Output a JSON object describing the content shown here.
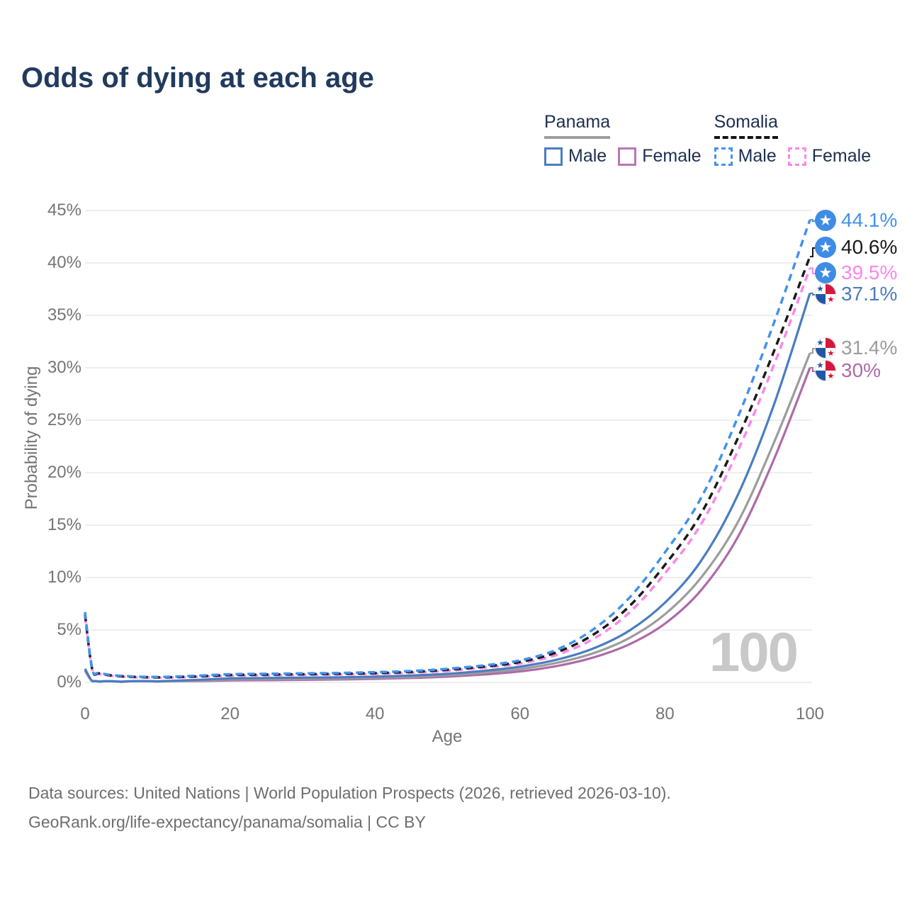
{
  "title": "Odds of dying at each age",
  "legend": {
    "panama": {
      "label": "Panama",
      "male": "Male",
      "female": "Female"
    },
    "somalia": {
      "label": "Somalia",
      "male": "Male",
      "female": "Female"
    }
  },
  "watermark": "100",
  "footer": {
    "line1": "Data sources: United Nations | World Population Prospects (2026, retrieved 2026-03-10).",
    "line2": "GeoRank.org/life-expectancy/panama/somalia | CC BY"
  },
  "flags": {
    "panama": {
      "red": "#d5173c",
      "blue": "#2257a8",
      "white": "#ffffff"
    },
    "somalia": {
      "blue": "#3f8ce4",
      "star": "#ffffff"
    }
  },
  "chart_data": {
    "type": "line",
    "title": "Odds of dying at each age",
    "xlabel": "Age",
    "ylabel": "Probability of dying",
    "xlim": [
      0,
      100
    ],
    "ylim": [
      0,
      45
    ],
    "x_ticks": [
      0,
      20,
      40,
      60,
      80,
      100
    ],
    "y_ticks": [
      "0%",
      "5%",
      "10%",
      "15%",
      "20%",
      "25%",
      "30%",
      "35%",
      "40%",
      "45%"
    ],
    "grid": true,
    "legend_position": "top-right",
    "ages": [
      0,
      1,
      2,
      5,
      10,
      15,
      20,
      25,
      30,
      35,
      40,
      45,
      50,
      55,
      60,
      65,
      70,
      75,
      80,
      85,
      90,
      95,
      100
    ],
    "series": [
      {
        "name": "Somalia Male",
        "country": "somalia",
        "sex": "male",
        "color": "#4292ec",
        "dash": true,
        "end_label": "44.1%",
        "values": [
          6.7,
          1.3,
          0.9,
          0.62,
          0.52,
          0.62,
          0.78,
          0.82,
          0.86,
          0.9,
          0.97,
          1.08,
          1.3,
          1.62,
          2.1,
          3.1,
          5.0,
          8.0,
          12.4,
          17.6,
          25.2,
          34.2,
          44.1
        ]
      },
      {
        "name": "Somalia Both sexes",
        "country": "somalia",
        "sex": "both",
        "color": "#1a1a1a",
        "dash": true,
        "end_label": "40.6%",
        "values": [
          6.5,
          1.25,
          0.85,
          0.58,
          0.48,
          0.56,
          0.7,
          0.74,
          0.78,
          0.82,
          0.88,
          1.0,
          1.2,
          1.5,
          1.95,
          2.85,
          4.5,
          7.2,
          11.2,
          16.1,
          23.2,
          31.5,
          40.6
        ]
      },
      {
        "name": "Somalia Female",
        "country": "somalia",
        "sex": "female",
        "color": "#fb86ea",
        "dash": true,
        "end_label": "39.5%",
        "values": [
          6.3,
          1.2,
          0.8,
          0.55,
          0.45,
          0.52,
          0.63,
          0.67,
          0.71,
          0.75,
          0.81,
          0.92,
          1.1,
          1.4,
          1.8,
          2.6,
          4.1,
          6.6,
          10.4,
          15.1,
          22.0,
          30.2,
          39.5
        ]
      },
      {
        "name": "Panama Male",
        "country": "panama",
        "sex": "male",
        "color": "#4a7dc0",
        "dash": false,
        "end_label": "37.1%",
        "values": [
          1.3,
          0.12,
          0.08,
          0.07,
          0.1,
          0.22,
          0.38,
          0.42,
          0.45,
          0.48,
          0.55,
          0.65,
          0.82,
          1.1,
          1.5,
          2.15,
          3.2,
          4.9,
          7.6,
          11.6,
          17.8,
          26.4,
          37.1
        ]
      },
      {
        "name": "Panama Both sexes",
        "country": "panama",
        "sex": "both",
        "color": "#9c9c9c",
        "dash": false,
        "end_label": "31.4%",
        "values": [
          1.2,
          0.11,
          0.07,
          0.06,
          0.09,
          0.17,
          0.28,
          0.31,
          0.34,
          0.38,
          0.44,
          0.53,
          0.68,
          0.92,
          1.27,
          1.85,
          2.75,
          4.2,
          6.5,
          10.0,
          15.2,
          22.8,
          31.4
        ]
      },
      {
        "name": "Panama Female",
        "country": "panama",
        "sex": "female",
        "color": "#ae6aaa",
        "dash": false,
        "end_label": "30%",
        "values": [
          1.1,
          0.1,
          0.06,
          0.05,
          0.08,
          0.12,
          0.18,
          0.21,
          0.24,
          0.28,
          0.34,
          0.42,
          0.55,
          0.75,
          1.05,
          1.55,
          2.35,
          3.6,
          5.6,
          8.8,
          13.8,
          21.2,
          30.0
        ]
      }
    ]
  }
}
